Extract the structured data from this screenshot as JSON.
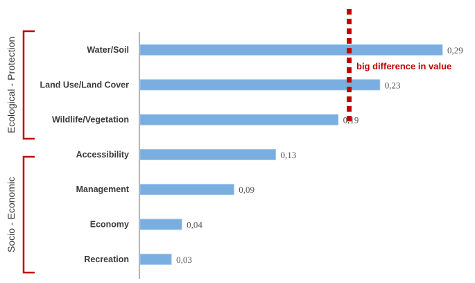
{
  "chart_data": {
    "type": "bar",
    "orientation": "horizontal",
    "categories": [
      "Water/Soil",
      "Land Use/Land Cover",
      "Wildlife/Vegetation",
      "Accessibility",
      "Management",
      "Economy",
      "Recreation"
    ],
    "values": [
      0.29,
      0.23,
      0.19,
      0.13,
      0.09,
      0.04,
      0.03
    ],
    "value_labels": [
      "0,29",
      "0,23",
      "0,19",
      "0,13",
      "0,09",
      "0,04",
      "0,03"
    ],
    "title": "",
    "xlabel": "",
    "ylabel": "",
    "xlim": [
      0,
      0.3
    ],
    "grid": false,
    "bar_color": "#7aaee0",
    "groups": [
      {
        "label": "Ecological - Protection",
        "categories": [
          "Water/Soil",
          "Land Use/Land Cover",
          "Wildlife/Vegetation"
        ]
      },
      {
        "label": "Socio - Economic",
        "categories": [
          "Accessibility",
          "Management",
          "Economy",
          "Recreation"
        ]
      }
    ],
    "bracket_color": "#c00000",
    "annotation": {
      "text": "big difference in value",
      "color": "#c00000",
      "at_value": 0.23
    }
  }
}
